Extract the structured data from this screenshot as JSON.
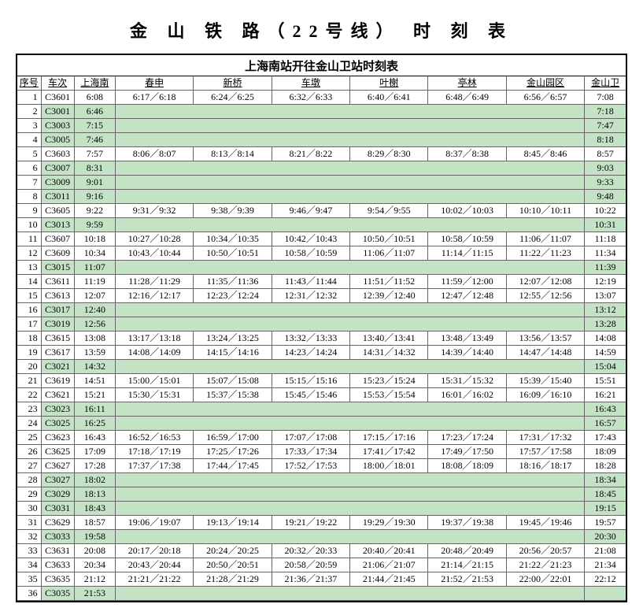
{
  "title": "金 山 铁 路（22号线） 时 刻 表",
  "subtitle": "上海南站开往金山卫站时刻表",
  "columns": [
    "序号",
    "车次",
    "上海南",
    "春申",
    "新桥",
    "车墩",
    "叶榭",
    "亭林",
    "金山园区",
    "金山卫"
  ],
  "col_widths": {
    "idx": 30,
    "train": 42,
    "dep": 52,
    "mid": 99,
    "arr": 52
  },
  "colors": {
    "express_bg": "#c4e3c4",
    "border": "#666666",
    "outer_border": "#000000",
    "bg": "#ffffff"
  },
  "font": {
    "family": "SimSun",
    "title_size": 22,
    "body_size": 12,
    "subtitle_size": 15
  },
  "rows": [
    {
      "n": 1,
      "t": "C3601",
      "d": "6:08",
      "m": [
        "6:17／6:18",
        "6:24／6:25",
        "6:32／6:33",
        "6:40／6:41",
        "6:48／6:49",
        "6:56／6:57"
      ],
      "a": "7:08",
      "e": false
    },
    {
      "n": 2,
      "t": "C3001",
      "d": "6:46",
      "m": null,
      "a": "7:18",
      "e": true
    },
    {
      "n": 3,
      "t": "C3003",
      "d": "7:15",
      "m": null,
      "a": "7:47",
      "e": true
    },
    {
      "n": 4,
      "t": "C3005",
      "d": "7:46",
      "m": null,
      "a": "8:18",
      "e": true
    },
    {
      "n": 5,
      "t": "C3603",
      "d": "7:57",
      "m": [
        "8:06／8:07",
        "8:13／8:14",
        "8:21／8:22",
        "8:29／8:30",
        "8:37／8:38",
        "8:45／8:46"
      ],
      "a": "8:57",
      "e": false
    },
    {
      "n": 6,
      "t": "C3007",
      "d": "8:31",
      "m": null,
      "a": "9:03",
      "e": true
    },
    {
      "n": 7,
      "t": "C3009",
      "d": "9:01",
      "m": null,
      "a": "9:33",
      "e": true
    },
    {
      "n": 8,
      "t": "C3011",
      "d": "9:16",
      "m": null,
      "a": "9:48",
      "e": true
    },
    {
      "n": 9,
      "t": "C3605",
      "d": "9:22",
      "m": [
        "9:31／9:32",
        "9:38／9:39",
        "9:46／9:47",
        "9:54／9:55",
        "10:02／10:03",
        "10:10／10:11"
      ],
      "a": "10:22",
      "e": false
    },
    {
      "n": 10,
      "t": "C3013",
      "d": "9:59",
      "m": null,
      "a": "10:31",
      "e": true
    },
    {
      "n": 11,
      "t": "C3607",
      "d": "10:18",
      "m": [
        "10:27／10:28",
        "10:34／10:35",
        "10:42／10:43",
        "10:50／10:51",
        "10:58／10:59",
        "11:06／11:07"
      ],
      "a": "11:18",
      "e": false
    },
    {
      "n": 12,
      "t": "C3609",
      "d": "10:34",
      "m": [
        "10:43／10:44",
        "10:50／10:51",
        "10:58／10:59",
        "11:06／11:07",
        "11:14／11:15",
        "11:22／11:23"
      ],
      "a": "11:34",
      "e": false
    },
    {
      "n": 13,
      "t": "C3015",
      "d": "11:07",
      "m": null,
      "a": "11:39",
      "e": true
    },
    {
      "n": 14,
      "t": "C3611",
      "d": "11:19",
      "m": [
        "11:28／11:29",
        "11:35／11:36",
        "11:43／11:44",
        "11:51／11:52",
        "11:59／12:00",
        "12:07／12:08"
      ],
      "a": "12:19",
      "e": false
    },
    {
      "n": 15,
      "t": "C3613",
      "d": "12:07",
      "m": [
        "12:16／12:17",
        "12:23／12:24",
        "12:31／12:32",
        "12:39／12:40",
        "12:47／12:48",
        "12:55／12:56"
      ],
      "a": "13:07",
      "e": false
    },
    {
      "n": 16,
      "t": "C3017",
      "d": "12:40",
      "m": null,
      "a": "13:12",
      "e": true
    },
    {
      "n": 17,
      "t": "C3019",
      "d": "12:56",
      "m": null,
      "a": "13:28",
      "e": true
    },
    {
      "n": 18,
      "t": "C3615",
      "d": "13:08",
      "m": [
        "13:17／13:18",
        "13:24／13:25",
        "13:32／13:33",
        "13:40／13:41",
        "13:48／13:49",
        "13:56／13:57"
      ],
      "a": "14:08",
      "e": false
    },
    {
      "n": 19,
      "t": "C3617",
      "d": "13:59",
      "m": [
        "14:08／14:09",
        "14:15／14:16",
        "14:23／14:24",
        "14:31／14:32",
        "14:39／14:40",
        "14:47／14:48"
      ],
      "a": "14:59",
      "e": false
    },
    {
      "n": 20,
      "t": "C3021",
      "d": "14:32",
      "m": null,
      "a": "15:04",
      "e": true
    },
    {
      "n": 21,
      "t": "C3619",
      "d": "14:51",
      "m": [
        "15:00／15:01",
        "15:07／15:08",
        "15:15／15:16",
        "15:23／15:24",
        "15:31／15:32",
        "15:39／15:40"
      ],
      "a": "15:51",
      "e": false
    },
    {
      "n": 22,
      "t": "C3621",
      "d": "15:21",
      "m": [
        "15:30／15:31",
        "15:37／15:38",
        "15:45／15:46",
        "15:53／15:54",
        "16:01／16:02",
        "16:09／16:10"
      ],
      "a": "16:21",
      "e": false
    },
    {
      "n": 23,
      "t": "C3023",
      "d": "16:11",
      "m": null,
      "a": "16:43",
      "e": true
    },
    {
      "n": 24,
      "t": "C3025",
      "d": "16:25",
      "m": null,
      "a": "16:57",
      "e": true
    },
    {
      "n": 25,
      "t": "C3623",
      "d": "16:43",
      "m": [
        "16:52／16:53",
        "16:59／17:00",
        "17:07／17:08",
        "17:15／17:16",
        "17:23／17:24",
        "17:31／17:32"
      ],
      "a": "17:43",
      "e": false
    },
    {
      "n": 26,
      "t": "C3625",
      "d": "17:09",
      "m": [
        "17:18／17:19",
        "17:25／17:26",
        "17:33／17:34",
        "17:41／17:42",
        "17:49／17:50",
        "17:57／17:58"
      ],
      "a": "18:09",
      "e": false
    },
    {
      "n": 27,
      "t": "C3627",
      "d": "17:28",
      "m": [
        "17:37／17:38",
        "17:44／17:45",
        "17:52／17:53",
        "18:00／18:01",
        "18:08／18:09",
        "18:16／18:17"
      ],
      "a": "18:28",
      "e": false
    },
    {
      "n": 28,
      "t": "C3027",
      "d": "18:02",
      "m": null,
      "a": "18:34",
      "e": true
    },
    {
      "n": 29,
      "t": "C3029",
      "d": "18:13",
      "m": null,
      "a": "18:45",
      "e": true
    },
    {
      "n": 30,
      "t": "C3031",
      "d": "18:43",
      "m": null,
      "a": "19:15",
      "e": true
    },
    {
      "n": 31,
      "t": "C3629",
      "d": "18:57",
      "m": [
        "19:06／19:07",
        "19:13／19:14",
        "19:21／19:22",
        "19:29／19:30",
        "19:37／19:38",
        "19:45／19:46"
      ],
      "a": "19:57",
      "e": false
    },
    {
      "n": 32,
      "t": "C3033",
      "d": "19:58",
      "m": null,
      "a": "20:30",
      "e": true
    },
    {
      "n": 33,
      "t": "C3631",
      "d": "20:08",
      "m": [
        "20:17／20:18",
        "20:24／20:25",
        "20:32／20:33",
        "20:40／20:41",
        "20:48／20:49",
        "20:56／20:57"
      ],
      "a": "21:08",
      "e": false
    },
    {
      "n": 34,
      "t": "C3633",
      "d": "20:34",
      "m": [
        "20:43／20:44",
        "20:50／20:51",
        "20:58／20:59",
        "21:06／21:07",
        "21:14／21:15",
        "21:22／21:23"
      ],
      "a": "21:34",
      "e": false
    },
    {
      "n": 35,
      "t": "C3635",
      "d": "21:12",
      "m": [
        "21:21／21:22",
        "21:28／21:29",
        "21:36／21:37",
        "21:44／21:45",
        "21:52／21:53",
        "22:00／22:01"
      ],
      "a": "22:12",
      "e": false
    },
    {
      "n": 36,
      "t": "C3035",
      "d": "21:53",
      "m": null,
      "a": "",
      "e": true
    }
  ]
}
